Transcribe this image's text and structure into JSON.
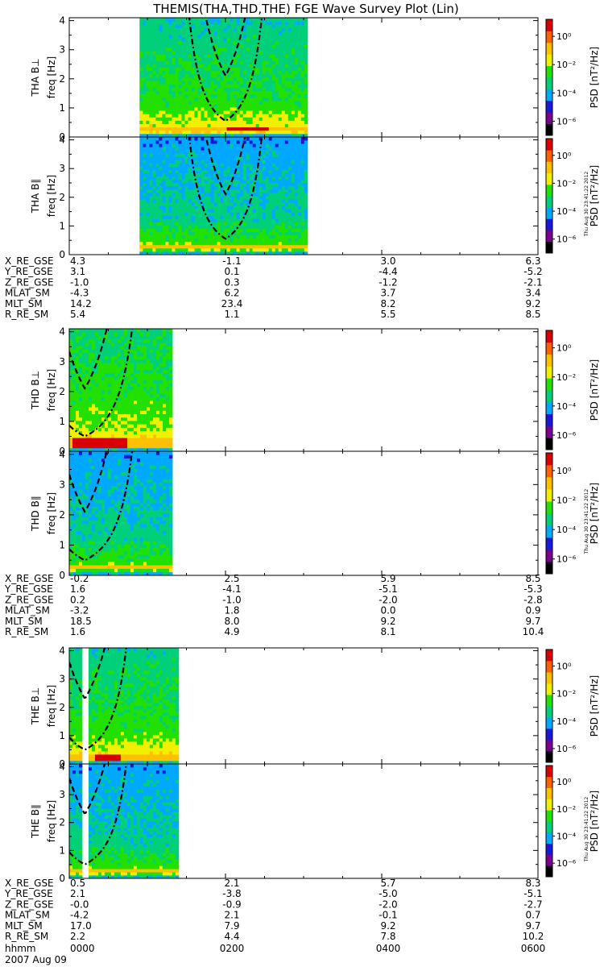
{
  "title": "THEMIS(THA,THD,THE) FGE Wave Survey Plot (Lin)",
  "stamp": "Thu Aug 30 23:41:22 2012",
  "date_label": "2007 Aug 09",
  "time_label_name": "hhmm",
  "time_ticks": [
    "0000",
    "0200",
    "0400",
    "0600"
  ],
  "colorbar": {
    "label": "PSD [nT²/Hz]",
    "ticks": [
      "10⁰",
      "10⁻²",
      "10⁻⁴",
      "10⁻⁶"
    ],
    "tick_exponents": [
      0,
      -2,
      -4,
      -6
    ],
    "range_exponents": [
      -7,
      1.2
    ]
  },
  "colors": {
    "colormap": [
      "#000000",
      "#7a0090",
      "#1a18d8",
      "#00a8ff",
      "#00d07a",
      "#22e000",
      "#f0f000",
      "#ffc000",
      "#ff6000",
      "#d80000"
    ]
  },
  "chart_data": [
    {
      "type": "heatmap",
      "probe": "THA",
      "ylabel": "THA B⊥",
      "unit_label": "freq [Hz]",
      "yticks": [
        0,
        1,
        2,
        3,
        4
      ],
      "ylim": [
        0,
        4.1
      ],
      "xlim_hours": [
        0,
        6
      ],
      "data_extent_hours": [
        0.9,
        3.05
      ],
      "spectrum": {
        "high_band_hz": [
          0.2,
          0.33
        ],
        "hot_spot_hours": [
          2.0,
          2.55
        ],
        "background_exp": -2.3
      }
    },
    {
      "type": "heatmap",
      "probe": "THA",
      "ylabel": "THA B∥",
      "unit_label": "freq [Hz]",
      "yticks": [
        0,
        1,
        2,
        3,
        4
      ],
      "ylim": [
        0,
        4.1
      ],
      "xlim_hours": [
        0,
        6
      ],
      "data_extent_hours": [
        0.9,
        3.05
      ],
      "spectrum": {
        "high_band_hz": [
          0.22,
          0.32
        ],
        "background_exp": -3.0
      }
    },
    {
      "type": "table",
      "probe": "THA",
      "rows": [
        {
          "label": "X_RE_GSE",
          "values": [
            "4.3",
            "-1.1",
            "3.0",
            "6.3"
          ]
        },
        {
          "label": "Y_RE_GSE",
          "values": [
            "3.1",
            "0.1",
            "-4.4",
            "-5.2"
          ]
        },
        {
          "label": "Z_RE_GSE",
          "values": [
            "-1.0",
            "0.3",
            "-1.2",
            "-2.1"
          ]
        },
        {
          "label": "MLAT_SM",
          "values": [
            "-4.3",
            "6.2",
            "3.7",
            "3.4"
          ]
        },
        {
          "label": "MLT_SM",
          "values": [
            "14.2",
            "23.4",
            "8.2",
            "9.2"
          ]
        },
        {
          "label": "R_RE_SM",
          "values": [
            "5.4",
            "1.1",
            "5.5",
            "8.5"
          ]
        }
      ]
    },
    {
      "type": "heatmap",
      "probe": "THD",
      "ylabel": "THD B⊥",
      "unit_label": "freq [Hz]",
      "yticks": [
        0,
        1,
        2,
        3,
        4
      ],
      "ylim": [
        0,
        4.1
      ],
      "xlim_hours": [
        0,
        6
      ],
      "data_extent_hours": [
        0.0,
        1.32
      ],
      "spectrum": {
        "high_band_hz": [
          0.1,
          0.45
        ],
        "hot_spot_hours": [
          0.05,
          0.75
        ],
        "background_exp": -2.0
      }
    },
    {
      "type": "heatmap",
      "probe": "THD",
      "ylabel": "THD B∥",
      "unit_label": "freq [Hz]",
      "yticks": [
        0,
        1,
        2,
        3,
        4
      ],
      "ylim": [
        0,
        4.1
      ],
      "xlim_hours": [
        0,
        6
      ],
      "data_extent_hours": [
        0.0,
        1.32
      ],
      "spectrum": {
        "high_band_hz": [
          0.25,
          0.35
        ],
        "background_exp": -3.0
      }
    },
    {
      "type": "table",
      "probe": "THD",
      "rows": [
        {
          "label": "X_RE_GSE",
          "values": [
            "-0.2",
            "2.5",
            "5.9",
            "8.5"
          ]
        },
        {
          "label": "Y_RE_GSE",
          "values": [
            "1.6",
            "-4.1",
            "-5.1",
            "-5.3"
          ]
        },
        {
          "label": "Z_RE_GSE",
          "values": [
            "0.2",
            "-1.0",
            "-2.0",
            "-2.8"
          ]
        },
        {
          "label": "MLAT_SM",
          "values": [
            "-3.2",
            "1.8",
            "0.0",
            "0.9"
          ]
        },
        {
          "label": "MLT_SM",
          "values": [
            "18.5",
            "8.0",
            "9.2",
            "9.7"
          ]
        },
        {
          "label": "R_RE_SM",
          "values": [
            "1.6",
            "4.9",
            "8.1",
            "10.4"
          ]
        }
      ]
    },
    {
      "type": "heatmap",
      "probe": "THE",
      "ylabel": "THE B⊥",
      "unit_label": "freq [Hz]",
      "yticks": [
        0,
        1,
        2,
        3,
        4
      ],
      "ylim": [
        0,
        4.1
      ],
      "xlim_hours": [
        0,
        6
      ],
      "data_extent_hours": [
        0.0,
        1.4
      ],
      "gap_hours": [
        0.17,
        0.23
      ],
      "spectrum": {
        "high_band_hz": [
          0.15,
          0.35
        ],
        "hot_spot_hours": [
          0.35,
          0.65
        ],
        "background_exp": -2.2
      }
    },
    {
      "type": "heatmap",
      "probe": "THE",
      "ylabel": "THE B∥",
      "unit_label": "freq [Hz]",
      "yticks": [
        0,
        1,
        2,
        3,
        4
      ],
      "ylim": [
        0,
        4.1
      ],
      "xlim_hours": [
        0,
        6
      ],
      "data_extent_hours": [
        0.0,
        1.4
      ],
      "gap_hours": [
        0.17,
        0.23
      ],
      "spectrum": {
        "high_band_hz": [
          0.2,
          0.3
        ],
        "background_exp": -3.0
      }
    },
    {
      "type": "table",
      "probe": "THE",
      "rows": [
        {
          "label": "X_RE_GSE",
          "values": [
            "0.5",
            "2.1",
            "5.7",
            "8.3"
          ]
        },
        {
          "label": "Y_RE_GSE",
          "values": [
            "2.1",
            "-3.8",
            "-5.0",
            "-5.1"
          ]
        },
        {
          "label": "Z_RE_GSE",
          "values": [
            "-0.0",
            "-0.9",
            "-2.0",
            "-2.7"
          ]
        },
        {
          "label": "MLAT_SM",
          "values": [
            "-4.2",
            "2.1",
            "-0.1",
            "0.7"
          ]
        },
        {
          "label": "MLT_SM",
          "values": [
            "17.0",
            "7.9",
            "9.2",
            "9.7"
          ]
        },
        {
          "label": "R_RE_SM",
          "values": [
            "2.2",
            "4.4",
            "7.8",
            "10.2"
          ]
        }
      ]
    }
  ],
  "gyro_curves": [
    {
      "probe": "THA",
      "dashdot": {
        "apex_hours": 2.0,
        "width": 0.95,
        "base_hz": 0.55
      },
      "dash": {
        "apex_hours": 2.0,
        "width": 1.25,
        "base_hz": 2.1
      }
    },
    {
      "probe": "THD",
      "dashdot": {
        "apex_hours": 0.2,
        "width": 1.2,
        "base_hz": 0.5
      },
      "dash": {
        "apex_hours": 0.2,
        "width": 1.4,
        "base_hz": 2.1
      }
    },
    {
      "probe": "THE",
      "dashdot": {
        "apex_hours": 0.2,
        "width": 1.05,
        "base_hz": 0.5
      },
      "dash": {
        "apex_hours": 0.2,
        "width": 1.45,
        "base_hz": 2.3
      }
    }
  ]
}
